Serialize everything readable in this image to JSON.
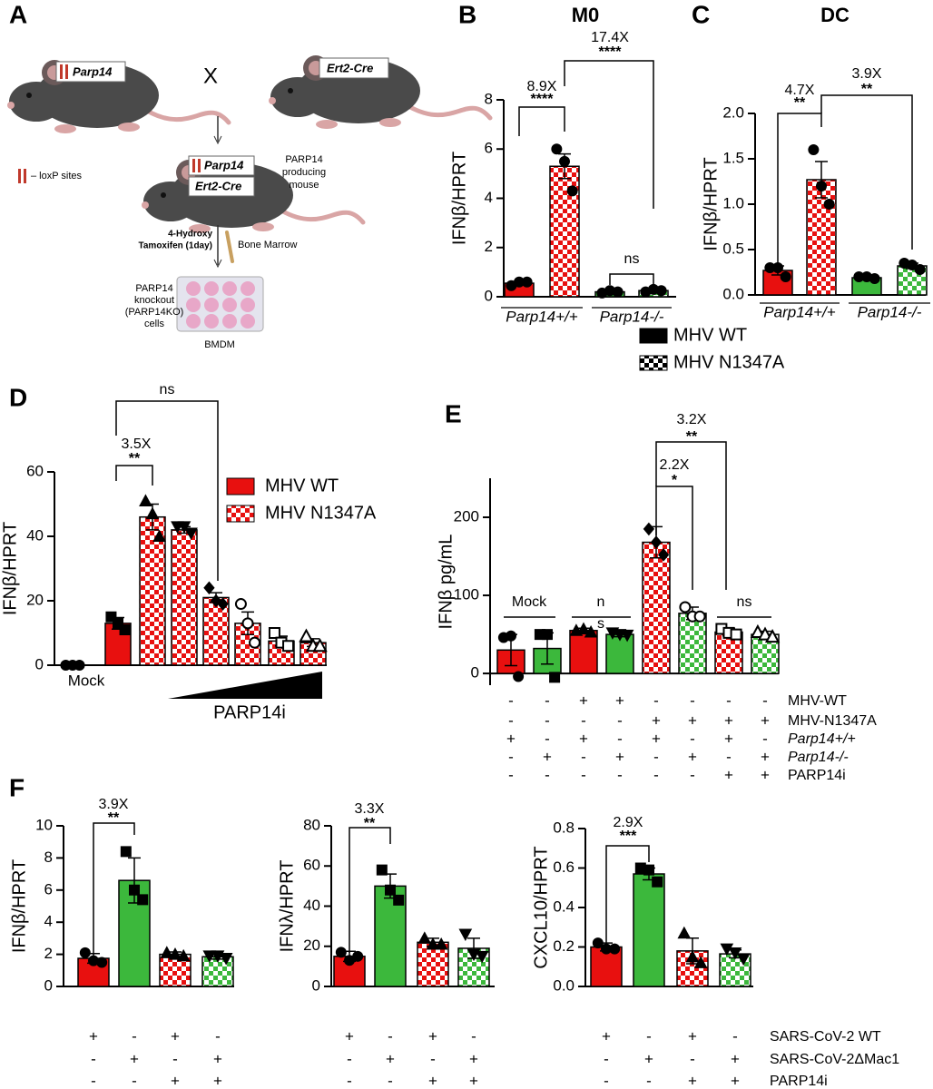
{
  "diagram": {
    "panel": "A",
    "parent1": "Parp14",
    "cross": "X",
    "parent2": "Ert2-Cre",
    "child_gene1": "Parp14",
    "child_gene2": "Ert2-Cre",
    "child_label": [
      "PARP14",
      "producing",
      "mouse"
    ],
    "loxp": "– loxP sites",
    "treatment": [
      "4-Hydroxy",
      "Tamoxifen (1day)"
    ],
    "source": "Bone Marrow",
    "cells": [
      "PARP14",
      "knockout",
      "(PARP14KO)",
      "cells"
    ],
    "plate": "BMDM"
  },
  "chart_data": [
    {
      "type": "bar",
      "panel": "B",
      "title": "M0",
      "ylabel": "IFNβ/HPRT",
      "categories": [
        "Parp14+/+",
        "Parp14-/-"
      ],
      "colors": [
        "#e8100f",
        "#3cb83c"
      ],
      "series": [
        {
          "name": "MHV WT",
          "pattern": "solid",
          "marker": "circle",
          "values": [
            0.55,
            0.2
          ],
          "errors": [
            0.07,
            0.03
          ],
          "points": [
            [
              0.45,
              0.6,
              0.6
            ],
            [
              0.15,
              0.25,
              0.2
            ]
          ]
        },
        {
          "name": "MHV N1347A",
          "pattern": "checker",
          "marker": "circle",
          "values": [
            5.3,
            0.25
          ],
          "errors": [
            0.5,
            0.03
          ],
          "points": [
            [
              6.0,
              5.5,
              4.3
            ],
            [
              0.2,
              0.3,
              0.25
            ]
          ]
        }
      ],
      "ylim": [
        0,
        8
      ],
      "yticks": [
        0,
        2,
        4,
        6,
        8
      ],
      "annotations": [
        "8.9X",
        "****",
        "17.4X",
        "****",
        "ns"
      ]
    },
    {
      "type": "bar",
      "panel": "C",
      "title": "DC",
      "ylabel": "IFNβ/HPRT",
      "categories": [
        "Parp14+/+",
        "Parp14-/-"
      ],
      "colors": [
        "#e8100f",
        "#3cb83c"
      ],
      "series": [
        {
          "pattern": "solid",
          "marker": "circle",
          "values": [
            0.27,
            0.19
          ],
          "errors": [
            0.05,
            0.02
          ],
          "points": [
            [
              0.3,
              0.3,
              0.2
            ],
            [
              0.2,
              0.2,
              0.18
            ]
          ]
        },
        {
          "pattern": "checker",
          "marker": "circle",
          "values": [
            1.27,
            0.32
          ],
          "errors": [
            0.2,
            0.03
          ],
          "points": [
            [
              1.6,
              1.2,
              1.0
            ],
            [
              0.35,
              0.33,
              0.28
            ]
          ]
        }
      ],
      "ylim": [
        0,
        2
      ],
      "yticks": [
        {
          "value": 0,
          "label": "0.0"
        },
        0.5,
        {
          "value": 1,
          "label": "1.0"
        },
        1.5,
        {
          "value": 2,
          "label": "2.0"
        }
      ],
      "annotations": [
        "4.7X",
        "**",
        "3.9X",
        "**"
      ]
    },
    {
      "type": "bar",
      "panel": "D",
      "ylabel": "IFNβ/HPRT",
      "xlabel": "PARP14i",
      "categories": [
        "Mock",
        null,
        null,
        null,
        null,
        null,
        null,
        null
      ],
      "values": [
        0,
        13,
        46,
        42,
        21,
        13,
        7.5,
        7
      ],
      "errors": [
        0,
        1.8,
        4,
        1,
        1.5,
        3.5,
        1.5,
        1.2
      ],
      "points": [
        [
          0,
          0,
          0
        ],
        [
          15,
          13,
          11
        ],
        [
          51,
          47,
          40
        ],
        [
          43,
          43,
          41
        ],
        [
          24,
          20,
          19
        ],
        [
          19,
          13,
          7
        ],
        [
          10,
          7,
          6
        ],
        [
          9,
          6,
          6
        ]
      ],
      "colors": [
        "#000000",
        "#e8100f",
        "#e8100f",
        "#e8100f",
        "#e8100f",
        "#e8100f",
        "#e8100f",
        "#e8100f"
      ],
      "patterns": [
        "solid",
        "solid",
        "checker",
        "checker",
        "checker",
        "checker",
        "checker",
        "checker"
      ],
      "markers": [
        "circle",
        "square",
        "triangle",
        "tri-down",
        "diamond",
        "open-circle",
        "open-square",
        "open-triangle"
      ],
      "legend": [
        {
          "name": "MHV WT",
          "color": "#e8100f",
          "pattern": "solid"
        },
        {
          "name": "MHV N1347A",
          "color": "#e8100f",
          "pattern": "checker"
        }
      ],
      "ylim": [
        0,
        60
      ],
      "yticks": [
        0,
        20,
        40,
        60
      ],
      "annotations": [
        "ns",
        "3.5X",
        "**"
      ]
    },
    {
      "type": "bar",
      "panel": "E",
      "ylabel": "IFNβ pg/mL",
      "values": [
        30,
        32,
        55,
        50,
        168,
        77,
        53,
        50
      ],
      "errors": [
        20,
        20,
        3,
        3,
        20,
        8,
        5,
        4
      ],
      "points": [
        [
          46,
          48,
          -4
        ],
        [
          50,
          50,
          -5
        ],
        [
          55,
          57,
          53
        ],
        [
          52,
          50,
          49
        ],
        [
          185,
          168,
          152
        ],
        [
          85,
          73,
          73
        ],
        [
          57,
          52,
          50
        ],
        [
          53,
          50,
          47
        ]
      ],
      "colors": [
        "#e8100f",
        "#3cb83c",
        "#e8100f",
        "#3cb83c",
        "#e8100f",
        "#3cb83c",
        "#e8100f",
        "#3cb83c"
      ],
      "patterns": [
        "solid",
        "solid",
        "solid",
        "solid",
        "checker",
        "checker",
        "checker",
        "checker"
      ],
      "markers": [
        "circle",
        "square",
        "triangle",
        "tri-down",
        "diamond",
        "open-circle",
        "open-square",
        "open-triangle"
      ],
      "conditions": [
        {
          "name": "MHV-WT",
          "signs": [
            "-",
            "-",
            "+",
            "+",
            "-",
            "-",
            "-",
            "-"
          ]
        },
        {
          "name": "MHV-N1347A",
          "signs": [
            "-",
            "-",
            "-",
            "-",
            "+",
            "+",
            "+",
            "+"
          ]
        },
        {
          "name": "Parp14+/+",
          "signs": [
            "+",
            "-",
            "+",
            "-",
            "+",
            "-",
            "+",
            "-"
          ]
        },
        {
          "name": "Parp14-/-",
          "signs": [
            "-",
            "+",
            "-",
            "+",
            "-",
            "+",
            "-",
            "+"
          ]
        },
        {
          "name": "PARP14i",
          "signs": [
            "-",
            "-",
            "-",
            "-",
            "-",
            "-",
            "+",
            "+"
          ]
        }
      ],
      "ylim": [
        -15,
        250
      ],
      "yticks": [
        0,
        100,
        200
      ],
      "annotations": [
        "Mock",
        "n",
        "s",
        "ns",
        "2.2X",
        "*",
        "3.2X",
        "**"
      ]
    },
    {
      "type": "bar",
      "panel": "F",
      "ylabel": "IFNβ/HPRT",
      "values": [
        1.75,
        6.6,
        2.0,
        1.85
      ],
      "errors": [
        0.3,
        1.4,
        0.15,
        0.15
      ],
      "points": [
        [
          2.1,
          1.6,
          1.5
        ],
        [
          8.4,
          6.0,
          5.4
        ],
        [
          2.1,
          2.0,
          1.9
        ],
        [
          1.9,
          1.9,
          1.75
        ]
      ],
      "colors": [
        "#e8100f",
        "#3cb83c",
        "#e8100f",
        "#3cb83c"
      ],
      "patterns": [
        "solid",
        "solid",
        "checker",
        "checker"
      ],
      "markers": [
        "circle",
        "square",
        "triangle",
        "tri-down"
      ],
      "signs": [
        [
          "+",
          "-",
          "+",
          "-"
        ],
        [
          "-",
          "+",
          "-",
          "+"
        ],
        [
          "-",
          "-",
          "+",
          "+"
        ]
      ],
      "ylim": [
        0,
        10
      ],
      "yticks": [
        0,
        2,
        4,
        6,
        8,
        10
      ],
      "annotations": [
        "3.9X",
        "**"
      ]
    },
    {
      "type": "bar",
      "ylabel": "IFNλ/HPRT",
      "values": [
        15,
        50,
        22,
        19
      ],
      "errors": [
        2.5,
        6,
        2,
        5
      ],
      "points": [
        [
          17,
          13,
          15
        ],
        [
          58,
          48,
          43
        ],
        [
          24,
          21,
          21
        ],
        [
          26,
          16,
          15
        ]
      ],
      "colors": [
        "#e8100f",
        "#3cb83c",
        "#e8100f",
        "#3cb83c"
      ],
      "patterns": [
        "solid",
        "solid",
        "checker",
        "checker"
      ],
      "markers": [
        "circle",
        "square",
        "triangle",
        "tri-down"
      ],
      "signs": [
        [
          "+",
          "-",
          "+",
          "-"
        ],
        [
          "-",
          "+",
          "-",
          "+"
        ],
        [
          "-",
          "-",
          "+",
          "+"
        ]
      ],
      "ylim": [
        0,
        80
      ],
      "yticks": [
        0,
        20,
        40,
        60,
        80
      ],
      "annotations": [
        "3.3X",
        "**"
      ]
    },
    {
      "type": "bar",
      "ylabel": "CXCL10/HPRT",
      "values": [
        0.2,
        0.57,
        0.18,
        0.165
      ],
      "errors": [
        0.02,
        0.03,
        0.065,
        0.02
      ],
      "points": [
        [
          0.22,
          0.19,
          0.19
        ],
        [
          0.6,
          0.59,
          0.53
        ],
        [
          0.27,
          0.15,
          0.12
        ],
        [
          0.19,
          0.17,
          0.14
        ]
      ],
      "colors": [
        "#e8100f",
        "#3cb83c",
        "#e8100f",
        "#3cb83c"
      ],
      "patterns": [
        "solid",
        "solid",
        "checker",
        "checker"
      ],
      "markers": [
        "circle",
        "square",
        "triangle",
        "tri-down"
      ],
      "signs": [
        [
          "+",
          "-",
          "+",
          "-"
        ],
        [
          "-",
          "+",
          "-",
          "+"
        ],
        [
          "-",
          "-",
          "+",
          "+"
        ]
      ],
      "condition_names": [
        "SARS-CoV-2 WT",
        "SARS-CoV-2ΔMac1",
        "PARP14i"
      ],
      "ylim": [
        0,
        0.8
      ],
      "yticks": [
        {
          "value": 0,
          "label": "0.0"
        },
        0.2,
        0.4,
        0.6,
        0.8
      ],
      "annotations": [
        "2.9X",
        "***"
      ]
    }
  ]
}
